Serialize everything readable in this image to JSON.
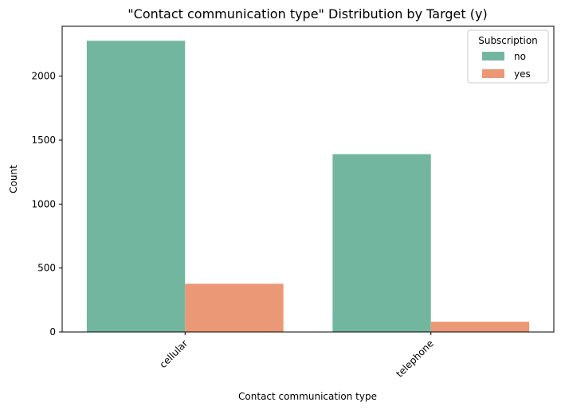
{
  "chart_data": {
    "type": "bar",
    "title": "\"Contact communication type\" Distribution by Target (y)",
    "xlabel": "Contact communication type",
    "ylabel": "Count",
    "categories": [
      "cellular",
      "telephone"
    ],
    "series": [
      {
        "name": "no",
        "values": [
          2277,
          1390
        ],
        "color": "#73b6a0"
      },
      {
        "name": "yes",
        "values": [
          377,
          80
        ],
        "color": "#ea9875"
      }
    ],
    "ylim": [
      0,
      2390
    ],
    "yticks": [
      0,
      500,
      1000,
      1500,
      2000
    ],
    "grid": false,
    "legend": {
      "title": "Subscription",
      "position": "top-right"
    }
  }
}
